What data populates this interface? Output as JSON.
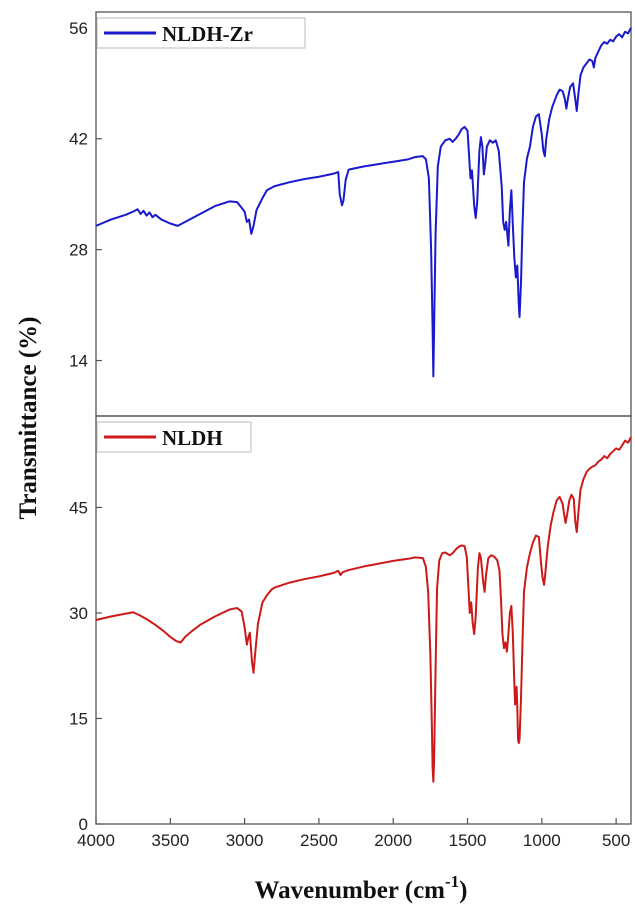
{
  "chart_data": [
    {
      "type": "line",
      "panel": "top",
      "xlabel": "Wavenumber (cm-1)",
      "ylabel": "Transmittance (%)",
      "xlim": [
        4000,
        400
      ],
      "ylim": [
        7,
        58
      ],
      "y_ticks": [
        14,
        28,
        42,
        56
      ],
      "legend_position": "top-left",
      "series": [
        {
          "name": "NLDH-Zr",
          "color": "#1a1acc",
          "points": [
            [
              4000,
              31.0
            ],
            [
              3900,
              31.8
            ],
            [
              3800,
              32.4
            ],
            [
              3750,
              32.8
            ],
            [
              3720,
              33.1
            ],
            [
              3700,
              32.5
            ],
            [
              3680,
              32.9
            ],
            [
              3660,
              32.3
            ],
            [
              3640,
              32.7
            ],
            [
              3620,
              32.1
            ],
            [
              3600,
              32.4
            ],
            [
              3560,
              31.8
            ],
            [
              3500,
              31.3
            ],
            [
              3450,
              31.0
            ],
            [
              3400,
              31.5
            ],
            [
              3300,
              32.5
            ],
            [
              3200,
              33.5
            ],
            [
              3100,
              34.1
            ],
            [
              3050,
              34.0
            ],
            [
              3000,
              32.8
            ],
            [
              2985,
              31.5
            ],
            [
              2970,
              31.8
            ],
            [
              2955,
              30.0
            ],
            [
              2940,
              31.0
            ],
            [
              2920,
              33.0
            ],
            [
              2880,
              34.5
            ],
            [
              2850,
              35.5
            ],
            [
              2800,
              36.0
            ],
            [
              2700,
              36.5
            ],
            [
              2600,
              36.9
            ],
            [
              2500,
              37.2
            ],
            [
              2400,
              37.6
            ],
            [
              2370,
              37.8
            ],
            [
              2360,
              35.0
            ],
            [
              2345,
              33.6
            ],
            [
              2335,
              34.2
            ],
            [
              2320,
              36.8
            ],
            [
              2300,
              38.1
            ],
            [
              2200,
              38.5
            ],
            [
              2100,
              38.8
            ],
            [
              2000,
              39.1
            ],
            [
              1900,
              39.4
            ],
            [
              1850,
              39.7
            ],
            [
              1800,
              39.8
            ],
            [
              1780,
              39.4
            ],
            [
              1760,
              37.0
            ],
            [
              1745,
              28.0
            ],
            [
              1735,
              18.0
            ],
            [
              1730,
              12.0
            ],
            [
              1725,
              18.0
            ],
            [
              1715,
              30.0
            ],
            [
              1700,
              38.5
            ],
            [
              1680,
              41.0
            ],
            [
              1650,
              41.8
            ],
            [
              1620,
              42.0
            ],
            [
              1600,
              41.6
            ],
            [
              1580,
              42.0
            ],
            [
              1560,
              42.5
            ],
            [
              1540,
              43.2
            ],
            [
              1520,
              43.5
            ],
            [
              1500,
              43.0
            ],
            [
              1490,
              40.0
            ],
            [
              1480,
              37.0
            ],
            [
              1470,
              38.0
            ],
            [
              1455,
              33.5
            ],
            [
              1445,
              32.0
            ],
            [
              1435,
              34.0
            ],
            [
              1420,
              40.5
            ],
            [
              1410,
              42.2
            ],
            [
              1400,
              41.0
            ],
            [
              1390,
              37.5
            ],
            [
              1380,
              39.0
            ],
            [
              1370,
              41.0
            ],
            [
              1350,
              41.8
            ],
            [
              1330,
              41.5
            ],
            [
              1310,
              41.8
            ],
            [
              1290,
              40.5
            ],
            [
              1270,
              36.0
            ],
            [
              1260,
              31.5
            ],
            [
              1250,
              30.5
            ],
            [
              1240,
              31.5
            ],
            [
              1225,
              28.5
            ],
            [
              1215,
              33.0
            ],
            [
              1205,
              35.5
            ],
            [
              1195,
              31.0
            ],
            [
              1185,
              27.0
            ],
            [
              1175,
              24.5
            ],
            [
              1165,
              26.0
            ],
            [
              1155,
              21.0
            ],
            [
              1150,
              19.5
            ],
            [
              1140,
              24.0
            ],
            [
              1130,
              31.0
            ],
            [
              1120,
              36.5
            ],
            [
              1100,
              39.5
            ],
            [
              1080,
              41.0
            ],
            [
              1060,
              43.5
            ],
            [
              1040,
              44.8
            ],
            [
              1020,
              45.1
            ],
            [
              1000,
              42.5
            ],
            [
              990,
              40.5
            ],
            [
              980,
              39.8
            ],
            [
              970,
              42.0
            ],
            [
              950,
              44.5
            ],
            [
              930,
              46.0
            ],
            [
              900,
              47.5
            ],
            [
              880,
              48.2
            ],
            [
              860,
              48.0
            ],
            [
              845,
              47.0
            ],
            [
              835,
              45.8
            ],
            [
              825,
              47.0
            ],
            [
              810,
              48.5
            ],
            [
              790,
              49.0
            ],
            [
              775,
              47.0
            ],
            [
              765,
              45.5
            ],
            [
              755,
              47.5
            ],
            [
              740,
              50.0
            ],
            [
              720,
              51.0
            ],
            [
              700,
              51.5
            ],
            [
              680,
              52.0
            ],
            [
              660,
              51.8
            ],
            [
              650,
              51.0
            ],
            [
              640,
              52.2
            ],
            [
              620,
              53.0
            ],
            [
              600,
              53.8
            ],
            [
              580,
              54.2
            ],
            [
              560,
              54.0
            ],
            [
              540,
              54.5
            ],
            [
              520,
              54.3
            ],
            [
              500,
              54.9
            ],
            [
              480,
              55.2
            ],
            [
              460,
              54.8
            ],
            [
              440,
              55.5
            ],
            [
              420,
              55.3
            ],
            [
              400,
              56.0
            ]
          ]
        }
      ]
    },
    {
      "type": "line",
      "panel": "bottom",
      "xlabel": "Wavenumber (cm-1)",
      "ylabel": "Transmittance (%)",
      "xlim": [
        4000,
        400
      ],
      "ylim": [
        0,
        58
      ],
      "x_ticks": [
        4000,
        3500,
        3000,
        2500,
        2000,
        1500,
        1000,
        500
      ],
      "y_ticks": [
        0,
        15,
        30,
        45
      ],
      "legend_position": "top-left",
      "series": [
        {
          "name": "NLDH",
          "color": "#cc1a1a",
          "points": [
            [
              4000,
              29.0
            ],
            [
              3900,
              29.5
            ],
            [
              3800,
              29.9
            ],
            [
              3750,
              30.1
            ],
            [
              3700,
              29.6
            ],
            [
              3650,
              29.0
            ],
            [
              3600,
              28.3
            ],
            [
              3550,
              27.5
            ],
            [
              3500,
              26.6
            ],
            [
              3460,
              26.0
            ],
            [
              3430,
              25.8
            ],
            [
              3400,
              26.6
            ],
            [
              3350,
              27.5
            ],
            [
              3300,
              28.3
            ],
            [
              3200,
              29.5
            ],
            [
              3100,
              30.5
            ],
            [
              3050,
              30.7
            ],
            [
              3020,
              30.2
            ],
            [
              3000,
              28.0
            ],
            [
              2985,
              25.5
            ],
            [
              2975,
              26.5
            ],
            [
              2965,
              27.2
            ],
            [
              2950,
              23.0
            ],
            [
              2940,
              21.5
            ],
            [
              2930,
              24.0
            ],
            [
              2910,
              28.5
            ],
            [
              2880,
              31.5
            ],
            [
              2850,
              32.5
            ],
            [
              2820,
              33.3
            ],
            [
              2800,
              33.6
            ],
            [
              2700,
              34.3
            ],
            [
              2600,
              34.8
            ],
            [
              2500,
              35.2
            ],
            [
              2400,
              35.7
            ],
            [
              2370,
              36.0
            ],
            [
              2355,
              35.4
            ],
            [
              2340,
              35.8
            ],
            [
              2300,
              36.1
            ],
            [
              2200,
              36.6
            ],
            [
              2100,
              37.0
            ],
            [
              2000,
              37.4
            ],
            [
              1900,
              37.7
            ],
            [
              1850,
              37.9
            ],
            [
              1800,
              37.8
            ],
            [
              1780,
              36.5
            ],
            [
              1765,
              33.0
            ],
            [
              1750,
              24.0
            ],
            [
              1740,
              14.0
            ],
            [
              1735,
              8.0
            ],
            [
              1730,
              6.0
            ],
            [
              1725,
              9.0
            ],
            [
              1715,
              22.0
            ],
            [
              1705,
              33.5
            ],
            [
              1690,
              37.5
            ],
            [
              1670,
              38.5
            ],
            [
              1650,
              38.6
            ],
            [
              1620,
              38.2
            ],
            [
              1600,
              38.5
            ],
            [
              1580,
              39.0
            ],
            [
              1560,
              39.4
            ],
            [
              1540,
              39.6
            ],
            [
              1520,
              39.5
            ],
            [
              1505,
              38.0
            ],
            [
              1495,
              34.0
            ],
            [
              1485,
              30.0
            ],
            [
              1475,
              31.5
            ],
            [
              1465,
              28.5
            ],
            [
              1455,
              27.0
            ],
            [
              1445,
              29.5
            ],
            [
              1430,
              36.5
            ],
            [
              1420,
              38.5
            ],
            [
              1410,
              37.8
            ],
            [
              1395,
              34.5
            ],
            [
              1385,
              33.0
            ],
            [
              1375,
              35.5
            ],
            [
              1360,
              37.8
            ],
            [
              1340,
              38.2
            ],
            [
              1320,
              38.0
            ],
            [
              1300,
              37.5
            ],
            [
              1285,
              36.0
            ],
            [
              1275,
              32.0
            ],
            [
              1265,
              27.0
            ],
            [
              1255,
              25.0
            ],
            [
              1245,
              25.8
            ],
            [
              1235,
              24.5
            ],
            [
              1225,
              27.0
            ],
            [
              1215,
              30.0
            ],
            [
              1205,
              31.0
            ],
            [
              1195,
              27.0
            ],
            [
              1185,
              20.0
            ],
            [
              1180,
              17.0
            ],
            [
              1175,
              18.5
            ],
            [
              1170,
              19.5
            ],
            [
              1165,
              16.5
            ],
            [
              1160,
              12.0
            ],
            [
              1155,
              11.5
            ],
            [
              1150,
              12.0
            ],
            [
              1140,
              18.0
            ],
            [
              1130,
              26.0
            ],
            [
              1120,
              33.0
            ],
            [
              1100,
              36.5
            ],
            [
              1080,
              38.5
            ],
            [
              1060,
              40.0
            ],
            [
              1040,
              41.0
            ],
            [
              1020,
              40.8
            ],
            [
              1005,
              37.0
            ],
            [
              995,
              35.0
            ],
            [
              985,
              34.0
            ],
            [
              975,
              36.0
            ],
            [
              960,
              39.5
            ],
            [
              940,
              42.5
            ],
            [
              920,
              44.5
            ],
            [
              900,
              46.0
            ],
            [
              880,
              46.5
            ],
            [
              860,
              45.5
            ],
            [
              850,
              44.0
            ],
            [
              840,
              42.8
            ],
            [
              830,
              44.0
            ],
            [
              815,
              46.0
            ],
            [
              800,
              46.8
            ],
            [
              785,
              46.2
            ],
            [
              775,
              43.0
            ],
            [
              765,
              41.5
            ],
            [
              755,
              44.0
            ],
            [
              740,
              47.5
            ],
            [
              720,
              49.0
            ],
            [
              700,
              50.0
            ],
            [
              680,
              50.5
            ],
            [
              660,
              50.8
            ],
            [
              640,
              51.0
            ],
            [
              620,
              51.5
            ],
            [
              600,
              51.8
            ],
            [
              580,
              52.3
            ],
            [
              560,
              52.0
            ],
            [
              540,
              52.6
            ],
            [
              520,
              53.0
            ],
            [
              500,
              53.4
            ],
            [
              480,
              53.2
            ],
            [
              460,
              53.8
            ],
            [
              440,
              54.5
            ],
            [
              420,
              54.2
            ],
            [
              400,
              55.0
            ]
          ]
        }
      ]
    }
  ],
  "labels": {
    "y_title": "Transmittance (%)",
    "x_title_main": "Wavenumber (cm",
    "x_title_sup": "-1",
    "x_title_close": ")"
  }
}
